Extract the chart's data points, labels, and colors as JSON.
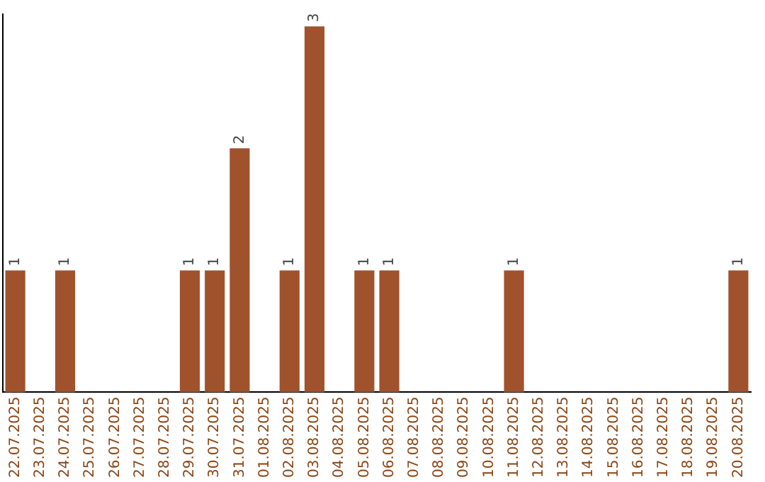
{
  "chart_data": {
    "type": "bar",
    "categories": [
      "22.07.2025",
      "23.07.2025",
      "24.07.2025",
      "25.07.2025",
      "26.07.2025",
      "27.07.2025",
      "28.07.2025",
      "29.07.2025",
      "30.07.2025",
      "31.07.2025",
      "01.08.2025",
      "02.08.2025",
      "03.08.2025",
      "04.08.2025",
      "05.08.2025",
      "06.08.2025",
      "07.08.2025",
      "08.08.2025",
      "09.08.2025",
      "10.08.2025",
      "11.08.2025",
      "12.08.2025",
      "13.08.2025",
      "14.08.2025",
      "15.08.2025",
      "16.08.2025",
      "17.08.2025",
      "18.08.2025",
      "19.08.2025",
      "20.08.2025"
    ],
    "values": [
      1,
      0,
      1,
      0,
      0,
      0,
      0,
      1,
      1,
      2,
      0,
      1,
      3,
      0,
      1,
      1,
      0,
      0,
      0,
      0,
      1,
      0,
      0,
      0,
      0,
      0,
      0,
      0,
      0,
      1
    ],
    "value_labels": [
      "1",
      null,
      "1",
      null,
      null,
      null,
      null,
      "1",
      "1",
      "2",
      null,
      "1",
      "3",
      null,
      "1",
      "1",
      null,
      null,
      null,
      null,
      "1",
      null,
      null,
      null,
      null,
      null,
      null,
      null,
      null,
      "1"
    ],
    "color": "#a0522d",
    "ylim": [
      0,
      3.1
    ],
    "tick_labels": "x",
    "grid": false,
    "legend": false
  }
}
